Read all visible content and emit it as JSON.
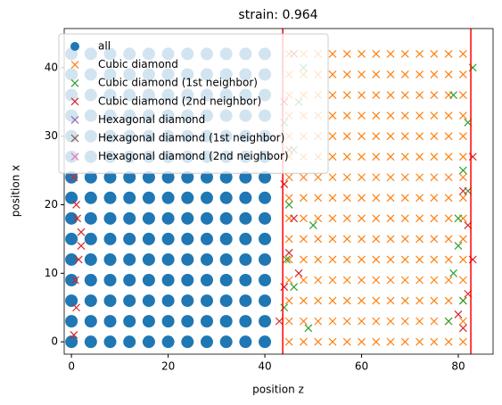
{
  "chart_data": {
    "type": "scatter",
    "title": "strain: 0.964",
    "xlabel": "position z",
    "ylabel": "position x",
    "xlim": [
      -1.5,
      87.2
    ],
    "ylim": [
      -1.8,
      45.7
    ],
    "xticks": [
      0,
      20,
      40,
      60,
      80
    ],
    "yticks": [
      0,
      10,
      20,
      30,
      40
    ],
    "legend": "upper left",
    "vlines": [
      {
        "value": 43.7,
        "color": "#ff0000"
      },
      {
        "value": 82.6,
        "color": "#ff0000"
      }
    ],
    "series": [
      {
        "name": "all",
        "color": "#1f77b4",
        "marker": "o",
        "x": [
          0,
          4,
          8,
          12,
          16,
          20,
          24,
          28,
          32,
          36,
          40,
          0,
          4,
          8,
          12,
          16,
          20,
          24,
          28,
          32,
          36,
          40,
          0,
          4,
          8,
          12,
          16,
          20,
          24,
          28,
          32,
          36,
          40,
          0,
          4,
          8,
          12,
          16,
          20,
          24,
          28,
          32,
          36,
          40,
          0,
          4,
          8,
          12,
          16,
          20,
          24,
          28,
          32,
          36,
          40,
          0,
          4,
          8,
          12,
          16,
          20,
          24,
          28,
          32,
          36,
          40,
          0,
          4,
          8,
          12,
          16,
          20,
          24,
          28,
          32,
          36,
          40,
          0,
          4,
          8,
          12,
          16,
          20,
          24,
          28,
          32,
          36,
          40,
          0,
          4,
          8,
          12,
          16,
          20,
          24,
          28,
          32,
          36,
          40,
          0,
          4,
          8,
          12,
          16,
          20,
          24,
          28,
          32,
          36,
          40,
          0,
          4,
          8,
          12,
          16,
          20,
          24,
          28,
          32,
          36,
          40,
          0,
          4,
          8,
          12,
          16,
          20,
          24,
          28,
          32,
          36,
          40,
          0,
          4,
          8,
          12,
          16,
          20,
          24,
          28,
          32,
          36,
          40,
          0,
          4,
          8,
          12,
          16,
          20,
          24,
          28,
          32,
          36,
          40,
          0,
          4,
          8,
          12,
          16,
          20,
          24,
          28,
          32,
          36,
          40
        ],
        "y": [
          0,
          0,
          0,
          0,
          0,
          0,
          0,
          0,
          0,
          0,
          0,
          3,
          3,
          3,
          3,
          3,
          3,
          3,
          3,
          3,
          3,
          3,
          6,
          6,
          6,
          6,
          6,
          6,
          6,
          6,
          6,
          6,
          6,
          9,
          9,
          9,
          9,
          9,
          9,
          9,
          9,
          9,
          9,
          9,
          12,
          12,
          12,
          12,
          12,
          12,
          12,
          12,
          12,
          12,
          12,
          15,
          15,
          15,
          15,
          15,
          15,
          15,
          15,
          15,
          15,
          15,
          18,
          18,
          18,
          18,
          18,
          18,
          18,
          18,
          18,
          18,
          18,
          21,
          21,
          21,
          21,
          21,
          21,
          21,
          21,
          21,
          21,
          21,
          24,
          24,
          24,
          24,
          24,
          24,
          24,
          24,
          24,
          24,
          24,
          27,
          27,
          27,
          27,
          27,
          27,
          27,
          27,
          27,
          27,
          27,
          30,
          30,
          30,
          30,
          30,
          30,
          30,
          30,
          30,
          30,
          30,
          33,
          33,
          33,
          33,
          33,
          33,
          33,
          33,
          33,
          33,
          33,
          36,
          36,
          36,
          36,
          36,
          36,
          36,
          36,
          36,
          36,
          36,
          39,
          39,
          39,
          39,
          39,
          39,
          39,
          39,
          39,
          39,
          39,
          42,
          42,
          42,
          42,
          42,
          42,
          42,
          42,
          42,
          42,
          42
        ]
      },
      {
        "name": "Cubic diamond",
        "color": "#ff7f0e",
        "marker": "x",
        "x": [
          45,
          48,
          51,
          54,
          57,
          60,
          63,
          66,
          69,
          72,
          75,
          78,
          81,
          45,
          48,
          51,
          54,
          57,
          60,
          63,
          66,
          69,
          72,
          75,
          78,
          81,
          45,
          48,
          51,
          54,
          57,
          60,
          63,
          66,
          69,
          72,
          75,
          78,
          81,
          45,
          48,
          51,
          54,
          57,
          60,
          63,
          66,
          69,
          72,
          75,
          78,
          81,
          45,
          48,
          51,
          54,
          57,
          60,
          63,
          66,
          69,
          72,
          75,
          78,
          81,
          45,
          48,
          51,
          54,
          57,
          60,
          63,
          66,
          69,
          72,
          75,
          78,
          81,
          45,
          48,
          51,
          54,
          57,
          60,
          63,
          66,
          69,
          72,
          75,
          78,
          81,
          45,
          48,
          51,
          54,
          57,
          60,
          63,
          66,
          69,
          72,
          75,
          78,
          81,
          45,
          48,
          51,
          54,
          57,
          60,
          63,
          66,
          69,
          72,
          75,
          78,
          81,
          45,
          48,
          51,
          54,
          57,
          60,
          63,
          66,
          69,
          72,
          75,
          78,
          81,
          45,
          48,
          51,
          54,
          57,
          60,
          63,
          66,
          69,
          72,
          75,
          78,
          81,
          45,
          48,
          51,
          54,
          57,
          60,
          63,
          66,
          69,
          72,
          75,
          78,
          81,
          45,
          48,
          51,
          54,
          57,
          60,
          63,
          66,
          69,
          72,
          75,
          78,
          81,
          45,
          48,
          51,
          54,
          57,
          60,
          63,
          66,
          69,
          72,
          75,
          78,
          81,
          45,
          48,
          51,
          54,
          57,
          60,
          63,
          66,
          69,
          72,
          75,
          78,
          81
        ],
        "y": [
          0,
          0,
          0,
          0,
          0,
          0,
          0,
          0,
          0,
          0,
          0,
          0,
          0,
          3,
          3,
          3,
          3,
          3,
          3,
          3,
          3,
          3,
          3,
          3,
          3,
          3,
          6,
          6,
          6,
          6,
          6,
          6,
          6,
          6,
          6,
          6,
          6,
          6,
          6,
          9,
          9,
          9,
          9,
          9,
          9,
          9,
          9,
          9,
          9,
          9,
          9,
          9,
          12,
          12,
          12,
          12,
          12,
          12,
          12,
          12,
          12,
          12,
          12,
          12,
          12,
          15,
          15,
          15,
          15,
          15,
          15,
          15,
          15,
          15,
          15,
          15,
          15,
          15,
          18,
          18,
          18,
          18,
          18,
          18,
          18,
          18,
          18,
          18,
          18,
          18,
          18,
          21,
          21,
          21,
          21,
          21,
          21,
          21,
          21,
          21,
          21,
          21,
          21,
          21,
          24,
          24,
          24,
          24,
          24,
          24,
          24,
          24,
          24,
          24,
          24,
          24,
          24,
          27,
          27,
          27,
          27,
          27,
          27,
          27,
          27,
          27,
          27,
          27,
          27,
          27,
          30,
          30,
          30,
          30,
          30,
          30,
          30,
          30,
          30,
          30,
          30,
          30,
          30,
          33,
          33,
          33,
          33,
          33,
          33,
          33,
          33,
          33,
          33,
          33,
          33,
          33,
          36,
          36,
          36,
          36,
          36,
          36,
          36,
          36,
          36,
          36,
          36,
          36,
          36,
          39,
          39,
          39,
          39,
          39,
          39,
          39,
          39,
          39,
          39,
          39,
          39,
          39,
          42,
          42,
          42,
          42,
          42,
          42,
          42,
          42,
          42,
          42,
          42,
          42,
          42
        ]
      },
      {
        "name": "Cubic diamond (1st neighbor)",
        "color": "#2ca02c",
        "marker": "x",
        "x": [
          44,
          44.5,
          45,
          46,
          47,
          48,
          49,
          50,
          78,
          79,
          80,
          81,
          82,
          83,
          82,
          81,
          80,
          79,
          44,
          46
        ],
        "y": [
          5,
          12,
          20,
          28,
          35,
          40,
          2,
          17,
          3,
          10,
          18,
          25,
          32,
          40,
          22,
          6,
          14,
          36,
          32,
          8
        ]
      },
      {
        "name": "Cubic diamond (2nd neighbor)",
        "color": "#d62728",
        "marker": "x",
        "x": [
          0.5,
          1,
          0.8,
          1.5,
          2,
          1,
          0.5,
          1.2,
          43,
          44,
          45,
          46,
          44,
          45,
          47,
          81,
          82,
          83,
          82,
          81,
          83,
          80,
          44,
          46,
          2
        ],
        "y": [
          1,
          5,
          9,
          12,
          16,
          20,
          24,
          18,
          3,
          8,
          13,
          18,
          23,
          28,
          10,
          2,
          7,
          12,
          17,
          22,
          27,
          4,
          35,
          42,
          14
        ]
      },
      {
        "name": "Hexagonal diamond",
        "color": "#9467bd",
        "marker": "x",
        "x": [],
        "y": []
      },
      {
        "name": "Hexagonal diamond (1st neighbor)",
        "color": "#8c564b",
        "marker": "x",
        "x": [],
        "y": []
      },
      {
        "name": "Hexagonal diamond (2nd neighbor)",
        "color": "#e377c2",
        "marker": "x",
        "x": [],
        "y": []
      }
    ]
  }
}
